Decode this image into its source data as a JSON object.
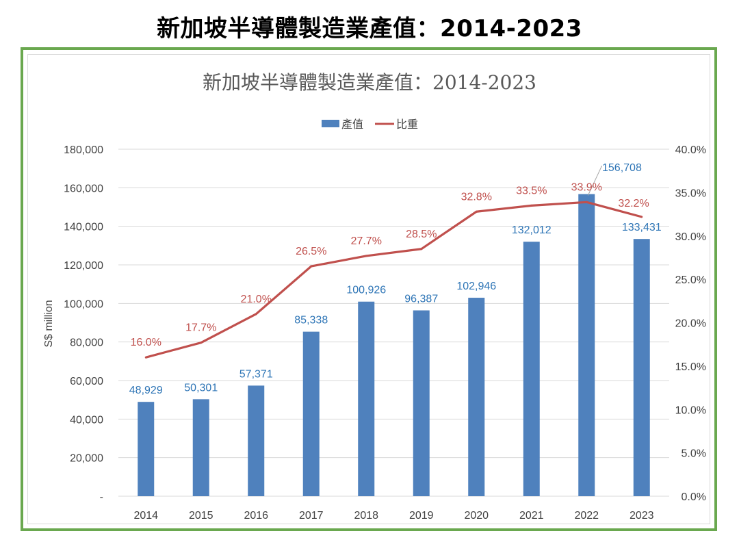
{
  "page": {
    "title": "新加坡半導體製造業產值：2014-2023"
  },
  "colors": {
    "bar": "#4f81bd",
    "line": "#c0504d",
    "bar_label": "#2e75b6",
    "frame": "#6aa84f",
    "gridline": "#d9d9d9"
  },
  "chart_data": {
    "type": "bar",
    "title": "新加坡半導體製造業產值：2014-2023",
    "categories": [
      "2014",
      "2015",
      "2016",
      "2017",
      "2018",
      "2019",
      "2020",
      "2021",
      "2022",
      "2023"
    ],
    "series": [
      {
        "name": "產值",
        "type": "bar",
        "axis": "left",
        "values": [
          48929,
          50301,
          57371,
          85338,
          100926,
          96387,
          102946,
          132012,
          156708,
          133431
        ],
        "labels": [
          "48,929",
          "50,301",
          "57,371",
          "85,338",
          "100,926",
          "96,387",
          "102,946",
          "132,012",
          "156,708",
          "133,431"
        ]
      },
      {
        "name": "比重",
        "type": "line",
        "axis": "right",
        "values": [
          16.0,
          17.7,
          21.0,
          26.5,
          27.7,
          28.5,
          32.8,
          33.5,
          33.9,
          32.2
        ],
        "labels": [
          "16.0%",
          "17.7%",
          "21.0%",
          "26.5%",
          "27.7%",
          "28.5%",
          "32.8%",
          "33.5%",
          "33.9%",
          "32.2%"
        ]
      }
    ],
    "ylabel": "S$ million",
    "ylim": [
      0,
      180000
    ],
    "y_ticks": [
      "-",
      "20,000",
      "40,000",
      "60,000",
      "80,000",
      "100,000",
      "120,000",
      "140,000",
      "160,000",
      "180,000"
    ],
    "y2lim": [
      0,
      40
    ],
    "y2_ticks": [
      "0.0%",
      "5.0%",
      "10.0%",
      "15.0%",
      "20.0%",
      "25.0%",
      "30.0%",
      "35.0%",
      "40.0%"
    ],
    "grid": true,
    "legend": "top-center"
  }
}
